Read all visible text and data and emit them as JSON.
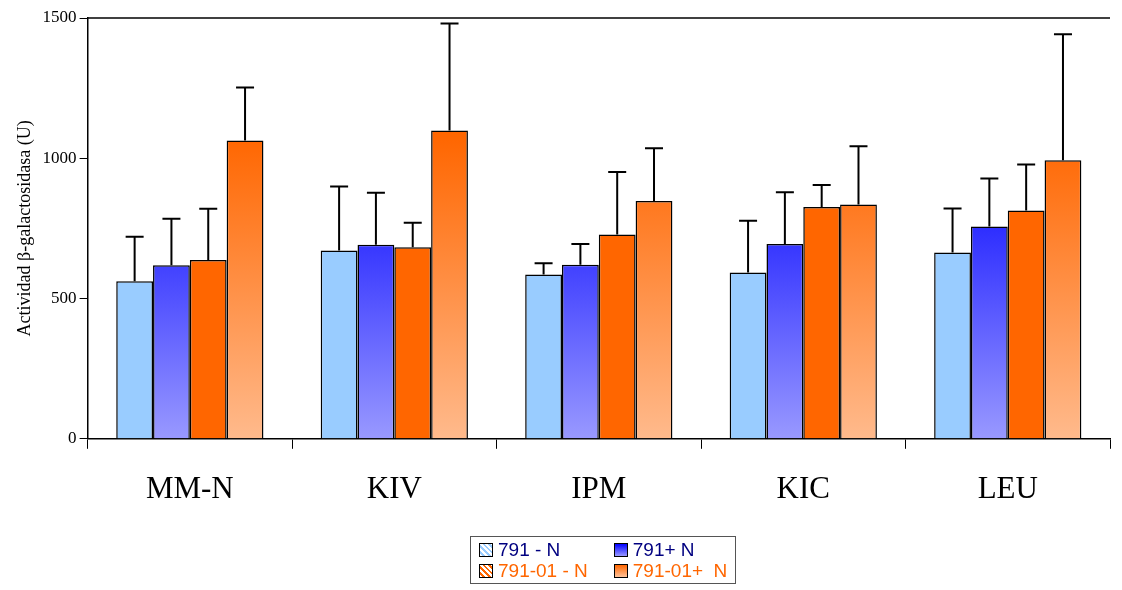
{
  "chart_data": {
    "type": "bar",
    "ylabel": "Actividad β-galactosidasa (U)",
    "categories": [
      "MM-N",
      "KIV",
      "IPM",
      "KIC",
      "LEU"
    ],
    "series": [
      {
        "name": "791 - N",
        "color": "#99ccff",
        "values": [
          562,
          671,
          586,
          593,
          664
        ],
        "errors": [
          [
            562,
            720
          ],
          [
            671,
            899
          ],
          [
            586,
            626
          ],
          [
            593,
            777
          ],
          [
            664,
            821
          ]
        ]
      },
      {
        "name": "791+ N",
        "color": "#0000ff",
        "values": [
          619,
          692,
          620,
          694,
          757
        ],
        "errors": [
          [
            619,
            784
          ],
          [
            692,
            877
          ],
          [
            620,
            694
          ],
          [
            694,
            879
          ],
          [
            757,
            928
          ]
        ]
      },
      {
        "name": "791-01 - N",
        "color": "#ff6600",
        "values": [
          637,
          683,
          728,
          826,
          814
        ],
        "errors": [
          [
            637,
            820
          ],
          [
            683,
            770
          ],
          [
            728,
            951
          ],
          [
            826,
            905
          ],
          [
            814,
            978
          ]
        ]
      },
      {
        "name": "791-01+  N",
        "color": "#ff6600",
        "values": [
          1063,
          1099,
          848,
          835,
          993
        ],
        "errors": [
          [
            1063,
            1252
          ],
          [
            1099,
            1480
          ],
          [
            848,
            1036
          ],
          [
            835,
            1043
          ],
          [
            993,
            1442
          ]
        ]
      }
    ],
    "ylim": [
      0,
      1500
    ],
    "yticks": [
      0,
      500,
      1000,
      1500
    ],
    "grid": false,
    "legend": "bottom"
  }
}
